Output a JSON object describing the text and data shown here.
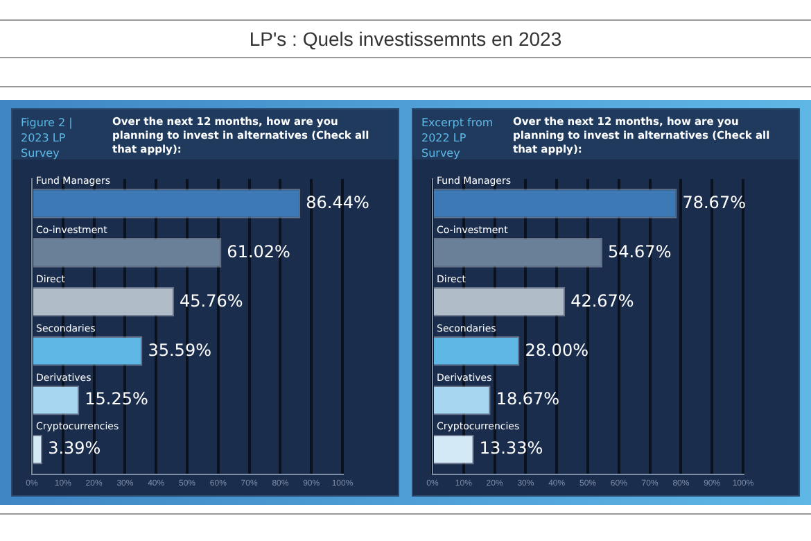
{
  "chart_data": [
    {
      "type": "bar",
      "orientation": "horizontal",
      "title": "LP's : Quels investissemnts en 2023",
      "subtitle": "Over the next 12 months, how are you planning to invest in alternatives (Check all that apply):",
      "annotations": [
        "Figure 2 | 2023 LP Survey"
      ],
      "categories": [
        "Fund Managers",
        "Co-investment",
        "Direct",
        "Secondaries",
        "Derivatives",
        "Cryptocurrencies"
      ],
      "values": [
        86.44,
        61.02,
        45.76,
        35.59,
        15.25,
        3.39
      ],
      "value_labels": [
        "86.44%",
        "61.02%",
        "45.76%",
        "35.59%",
        "15.25%",
        "3.39%"
      ],
      "colors": [
        "#3d7ab5",
        "#6a8098",
        "#b0bcc8",
        "#5fb7e6",
        "#a6d6f0",
        "#d3e9f5"
      ],
      "xlim": [
        0,
        100
      ],
      "xticks": [
        {
          "value": 0,
          "label": "0%"
        },
        {
          "value": 10,
          "label": "10%"
        },
        {
          "value": 20,
          "label": "20%"
        },
        {
          "value": 30,
          "label": "30%"
        },
        {
          "value": 40,
          "label": "40%"
        },
        {
          "value": 50,
          "label": "50%"
        },
        {
          "value": 60,
          "label": "60%"
        },
        {
          "value": 70,
          "label": "70%"
        },
        {
          "value": 80,
          "label": "80%"
        },
        {
          "value": 90,
          "label": "90%"
        },
        {
          "value": 100,
          "label": "100%"
        }
      ],
      "grid": "x"
    },
    {
      "type": "bar",
      "orientation": "horizontal",
      "subtitle": "Over the next 12 months, how are you planning to invest in alternatives (Check all that apply):",
      "annotations": [
        "Excerpt from 2022 LP Survey"
      ],
      "categories": [
        "Fund Managers",
        "Co-investment",
        "Direct",
        "Secondaries",
        "Derivatives",
        "Cryptocurrencies"
      ],
      "values": [
        78.67,
        54.67,
        42.67,
        28.0,
        18.67,
        13.33
      ],
      "value_labels": [
        "78.67%",
        "54.67%",
        "42.67%",
        "28.00%",
        "18.67%",
        "13.33%"
      ],
      "colors": [
        "#3d7ab5",
        "#6a8098",
        "#b0bcc8",
        "#5fb7e6",
        "#a6d6f0",
        "#d3e9f5"
      ],
      "xlim": [
        0,
        100
      ],
      "xticks": [
        {
          "value": 0,
          "label": "0%"
        },
        {
          "value": 10,
          "label": "10%"
        },
        {
          "value": 20,
          "label": "20%"
        },
        {
          "value": 30,
          "label": "30%"
        },
        {
          "value": 40,
          "label": "40%"
        },
        {
          "value": 50,
          "label": "50%"
        },
        {
          "value": 60,
          "label": "60%"
        },
        {
          "value": 70,
          "label": "70%"
        },
        {
          "value": 80,
          "label": "80%"
        },
        {
          "value": 90,
          "label": "90%"
        },
        {
          "value": 100,
          "label": "100%"
        }
      ],
      "grid": "x"
    }
  ]
}
